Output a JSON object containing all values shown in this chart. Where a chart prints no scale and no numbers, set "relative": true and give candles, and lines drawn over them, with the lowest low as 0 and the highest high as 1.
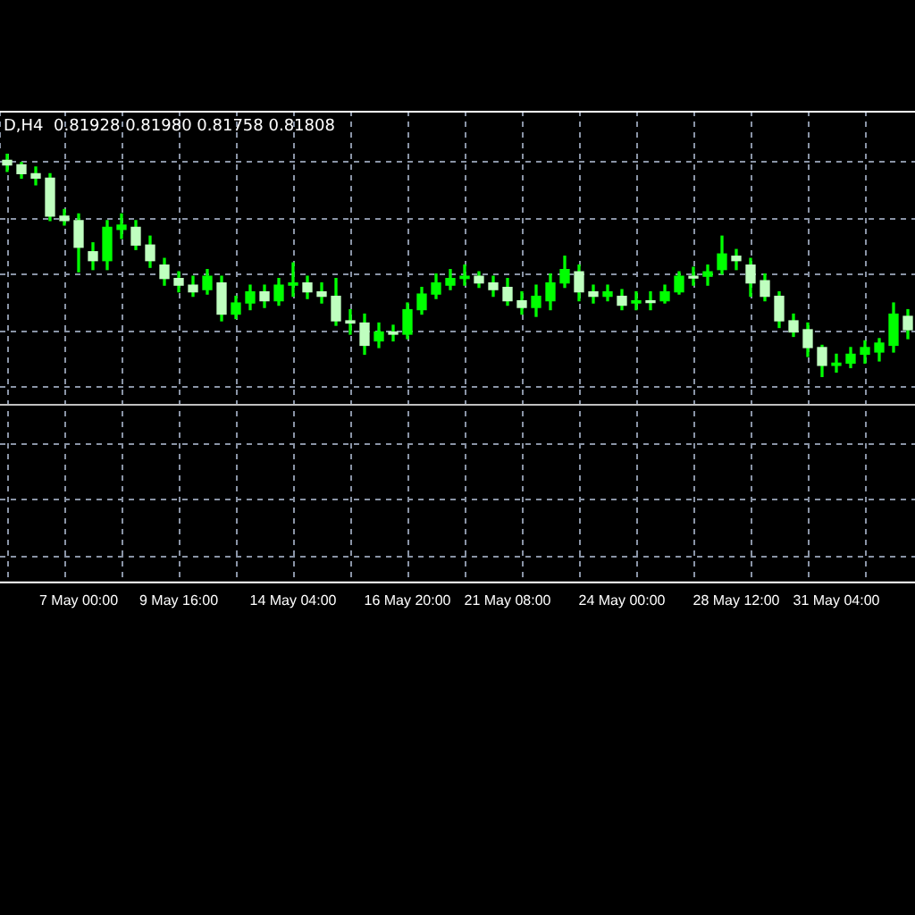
{
  "chart_data": {
    "type": "candlestick",
    "relative": true,
    "color": "#00ff00",
    "colors": [
      "#bfffbf",
      "#bfffbf",
      "#bfffbf",
      "#bfffbf",
      "#bfffbf",
      "#bfffbf",
      "#bfffbf",
      "#00ff00",
      "#00ff00",
      "#bfffbf",
      "#bfffbf",
      "#bfffbf",
      "#bfffbf",
      "#bfffbf",
      "#00ff00",
      "#bfffbf",
      "#00ff00",
      "#00ff00",
      "#bfffbf",
      "#00ff00",
      "#00ff00",
      "#bfffbf",
      "#bfffbf",
      "#bfffbf",
      "#bfffbf",
      "#bfffbf",
      "#00ff00",
      "#bfffbf",
      "#00ff00",
      "#00ff00",
      "#00ff00",
      "#00ff00",
      "#00ff00",
      "#bfffbf",
      "#bfffbf",
      "#bfffbf",
      "#bfffbf",
      "#00ff00",
      "#00ff00",
      "#00ff00",
      "#bfffbf",
      "#bfffbf",
      "#00ff00",
      "#bfffbf",
      "#00ff00",
      "#bfffbf",
      "#00ff00",
      "#00ff00",
      "#bfffbf",
      "#00ff00",
      "#00ff00",
      "#bfffbf",
      "#bfffbf",
      "#bfffbf",
      "#bfffbf",
      "#bfffbf",
      "#bfffbf",
      "#bfffbf",
      "#00ff00",
      "#00ff00",
      "#00ff00",
      "#00ff00",
      "#00ff00",
      "#bfffbf"
    ],
    "grid": true,
    "legend": false,
    "tick_labels": "x",
    "annotations": [
      "D,H4  0.81928 0.81980 0.81758 0.81808"
    ],
    "ref_lines": [
      {
        "axis": "y",
        "value": -0.12,
        "color": "#c0c0c0"
      }
    ],
    "categories": [
      null,
      null,
      null,
      null,
      null,
      "7 May 00:00",
      null,
      null,
      null,
      null,
      null,
      null,
      "9 May 16:00",
      null,
      null,
      null,
      null,
      null,
      null,
      null,
      "14 May 04:00",
      null,
      null,
      null,
      null,
      null,
      null,
      null,
      "16 May 20:00",
      null,
      null,
      null,
      null,
      null,
      null,
      "21 May 08:00",
      null,
      null,
      null,
      null,
      null,
      null,
      null,
      "24 May 00:00",
      null,
      null,
      null,
      null,
      null,
      null,
      null,
      "28 May 12:00",
      null,
      null,
      null,
      null,
      null,
      null,
      "31 May 04:00",
      null,
      null,
      null,
      null,
      null
    ],
    "ohlc": [
      [
        0.97,
        1,
        0.92,
        0.95
      ],
      [
        0.95,
        0.96,
        0.89,
        0.91
      ],
      [
        0.91,
        0.94,
        0.86,
        0.89
      ],
      [
        0.89,
        0.91,
        0.7,
        0.72
      ],
      [
        0.72,
        0.75,
        0.68,
        0.7
      ],
      [
        0.7,
        0.73,
        0.47,
        0.58
      ],
      [
        0.56,
        0.6,
        0.48,
        0.52
      ],
      [
        0.52,
        0.7,
        0.48,
        0.67
      ],
      [
        0.66,
        0.73,
        0.62,
        0.68
      ],
      [
        0.67,
        0.7,
        0.57,
        0.59
      ],
      [
        0.59,
        0.63,
        0.49,
        0.52
      ],
      [
        0.5,
        0.53,
        0.41,
        0.44
      ],
      [
        0.44,
        0.47,
        0.38,
        0.41
      ],
      [
        0.41,
        0.45,
        0.36,
        0.38
      ],
      [
        0.39,
        0.48,
        0.37,
        0.45
      ],
      [
        0.42,
        0.45,
        0.25,
        0.28
      ],
      [
        0.28,
        0.36,
        0.26,
        0.33
      ],
      [
        0.33,
        0.41,
        0.3,
        0.38
      ],
      [
        0.38,
        0.41,
        0.31,
        0.34
      ],
      [
        0.34,
        0.44,
        0.32,
        0.41
      ],
      [
        0.41,
        0.51,
        0.36,
        0.42
      ],
      [
        0.42,
        0.45,
        0.35,
        0.38
      ],
      [
        0.38,
        0.42,
        0.33,
        0.36
      ],
      [
        0.36,
        0.44,
        0.23,
        0.25
      ],
      [
        0.25,
        0.3,
        0.19,
        0.24
      ],
      [
        0.24,
        0.28,
        0.1,
        0.14
      ],
      [
        0.16,
        0.24,
        0.13,
        0.2
      ],
      [
        0.2,
        0.23,
        0.16,
        0.19
      ],
      [
        0.19,
        0.33,
        0.17,
        0.3
      ],
      [
        0.3,
        0.4,
        0.28,
        0.37
      ],
      [
        0.37,
        0.46,
        0.35,
        0.42
      ],
      [
        0.41,
        0.48,
        0.39,
        0.44
      ],
      [
        0.44,
        0.5,
        0.41,
        0.45
      ],
      [
        0.45,
        0.47,
        0.4,
        0.42
      ],
      [
        0.42,
        0.45,
        0.36,
        0.39
      ],
      [
        0.4,
        0.44,
        0.32,
        0.34
      ],
      [
        0.34,
        0.38,
        0.28,
        0.31
      ],
      [
        0.31,
        0.41,
        0.27,
        0.36
      ],
      [
        0.34,
        0.46,
        0.3,
        0.42
      ],
      [
        0.42,
        0.54,
        0.4,
        0.48
      ],
      [
        0.47,
        0.5,
        0.34,
        0.38
      ],
      [
        0.38,
        0.41,
        0.33,
        0.36
      ],
      [
        0.36,
        0.41,
        0.34,
        0.38
      ],
      [
        0.36,
        0.39,
        0.3,
        0.32
      ],
      [
        0.33,
        0.38,
        0.3,
        0.34
      ],
      [
        0.34,
        0.38,
        0.3,
        0.34
      ],
      [
        0.34,
        0.41,
        0.33,
        0.38
      ],
      [
        0.38,
        0.47,
        0.37,
        0.45
      ],
      [
        0.45,
        0.49,
        0.41,
        0.45
      ],
      [
        0.45,
        0.5,
        0.41,
        0.47
      ],
      [
        0.48,
        0.63,
        0.46,
        0.55
      ],
      [
        0.54,
        0.57,
        0.48,
        0.52
      ],
      [
        0.5,
        0.53,
        0.36,
        0.42
      ],
      [
        0.43,
        0.46,
        0.34,
        0.36
      ],
      [
        0.36,
        0.38,
        0.22,
        0.25
      ],
      [
        0.25,
        0.28,
        0.18,
        0.2
      ],
      [
        0.21,
        0.24,
        0.09,
        0.13
      ],
      [
        0.13,
        0.14,
        0,
        0.05
      ],
      [
        0.05,
        0.1,
        0.02,
        0.06
      ],
      [
        0.06,
        0.13,
        0.04,
        0.1
      ],
      [
        0.1,
        0.16,
        0.06,
        0.13
      ],
      [
        0.11,
        0.17,
        0.07,
        0.15
      ],
      [
        0.14,
        0.33,
        0.11,
        0.28
      ],
      [
        0.27,
        0.3,
        0.17,
        0.21
      ]
    ]
  }
}
